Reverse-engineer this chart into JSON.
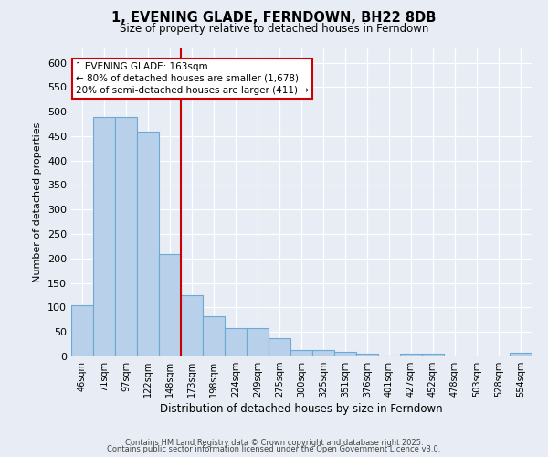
{
  "title": "1, EVENING GLADE, FERNDOWN, BH22 8DB",
  "subtitle": "Size of property relative to detached houses in Ferndown",
  "xlabel": "Distribution of detached houses by size in Ferndown",
  "ylabel": "Number of detached properties",
  "categories": [
    "46sqm",
    "71sqm",
    "97sqm",
    "122sqm",
    "148sqm",
    "173sqm",
    "198sqm",
    "224sqm",
    "249sqm",
    "275sqm",
    "300sqm",
    "325sqm",
    "351sqm",
    "376sqm",
    "401sqm",
    "427sqm",
    "452sqm",
    "478sqm",
    "503sqm",
    "528sqm",
    "554sqm"
  ],
  "values": [
    105,
    490,
    490,
    460,
    210,
    125,
    82,
    57,
    57,
    38,
    13,
    13,
    10,
    5,
    2,
    5,
    5,
    0,
    0,
    0,
    7
  ],
  "bar_color": "#b8d0ea",
  "bar_edge_color": "#6aaad4",
  "ylim": [
    0,
    630
  ],
  "yticks": [
    0,
    50,
    100,
    150,
    200,
    250,
    300,
    350,
    400,
    450,
    500,
    550,
    600
  ],
  "vline_color": "#cc0000",
  "annotation_text": "1 EVENING GLADE: 163sqm\n← 80% of detached houses are smaller (1,678)\n20% of semi-detached houses are larger (411) →",
  "annotation_box_color": "#cc0000",
  "fig_background_color": "#e8edf5",
  "plot_background_color": "#e8edf5",
  "footer_line1": "Contains HM Land Registry data © Crown copyright and database right 2025.",
  "footer_line2": "Contains public sector information licensed under the Open Government Licence v3.0."
}
